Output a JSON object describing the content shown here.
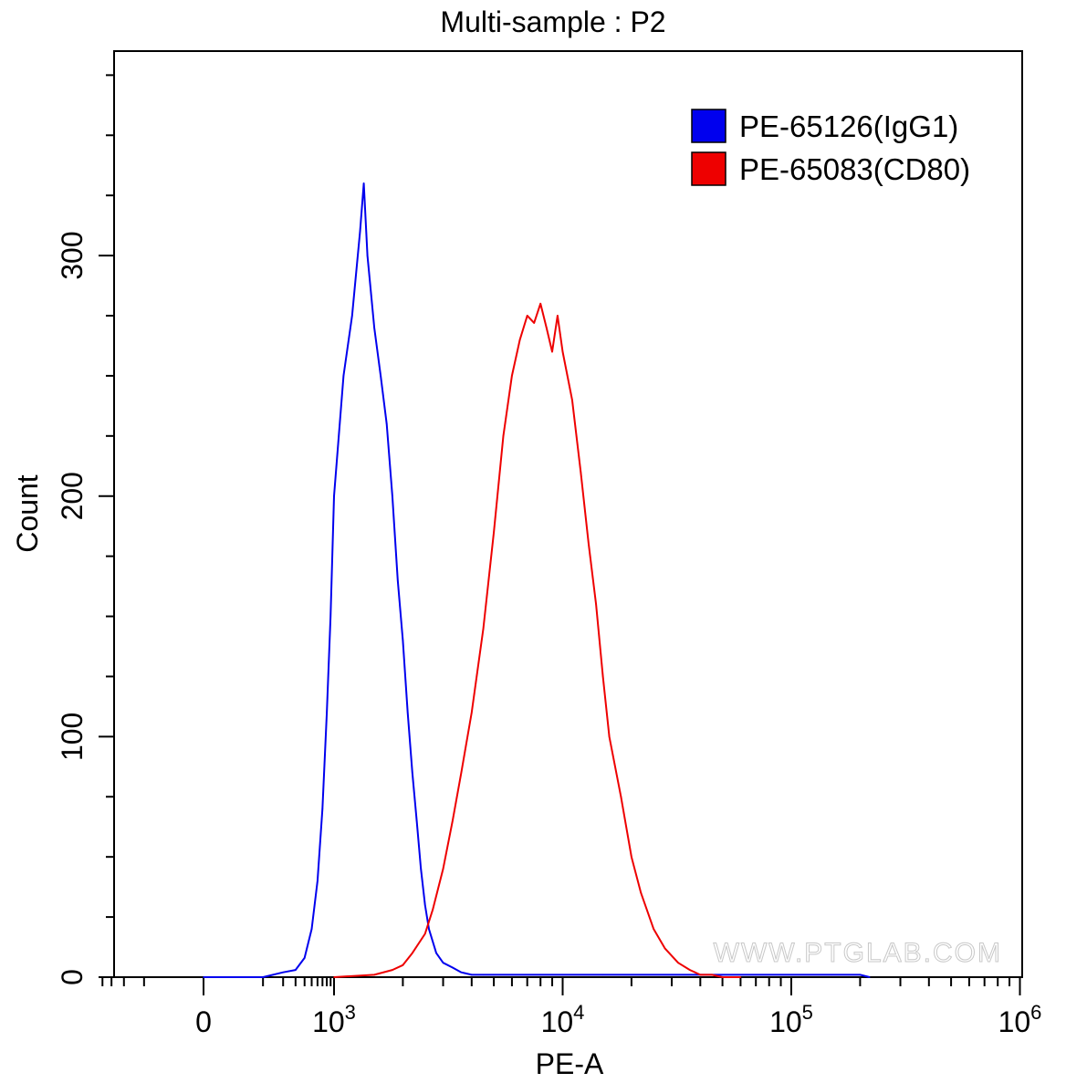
{
  "chart_data": {
    "type": "line",
    "title": "Multi-sample : P2",
    "xlabel": "PE-A",
    "ylabel": "Count",
    "x_scale": "biexponential",
    "xlim": [
      -400,
      1000000
    ],
    "ylim": [
      0,
      385
    ],
    "x_ticks": [
      {
        "value": 0,
        "base": "0",
        "exp": ""
      },
      {
        "value": 1000,
        "base": "10",
        "exp": "3"
      },
      {
        "value": 10000,
        "base": "10",
        "exp": "4"
      },
      {
        "value": 100000,
        "base": "10",
        "exp": "5"
      },
      {
        "value": 1000000,
        "base": "10",
        "exp": "6"
      }
    ],
    "y_ticks": [
      0,
      100,
      200,
      300
    ],
    "legend_position": "top-right",
    "watermark": "WWW.PTGLAB.COM",
    "series": [
      {
        "name": "PE-65126(IgG1)",
        "color": "#0000ee",
        "x": [
          0,
          100,
          200,
          300,
          400,
          500,
          600,
          700,
          800,
          900,
          1000,
          1100,
          1200,
          1300,
          1350,
          1400,
          1500,
          1600,
          1700,
          1800,
          1900,
          2000,
          2100,
          2200,
          2300,
          2400,
          2500,
          2600,
          2800,
          3000,
          3300,
          3600,
          4000,
          4500,
          5000,
          6000,
          8000,
          10000,
          15000,
          20000,
          30000,
          50000,
          70000,
          100000,
          150000,
          200000,
          220000
        ],
        "y": [
          0,
          0,
          2,
          3,
          8,
          20,
          40,
          70,
          110,
          150,
          200,
          250,
          275,
          310,
          330,
          300,
          270,
          250,
          230,
          200,
          165,
          140,
          110,
          85,
          65,
          45,
          30,
          20,
          10,
          6,
          4,
          2,
          1,
          1,
          1,
          1,
          1,
          1,
          1,
          1,
          1,
          1,
          1,
          1,
          1,
          1,
          0
        ]
      },
      {
        "name": "PE-65083(CD80)",
        "color": "#ee0000",
        "x": [
          1000,
          1500,
          1800,
          2000,
          2200,
          2500,
          2700,
          3000,
          3300,
          3600,
          4000,
          4500,
          5000,
          5500,
          6000,
          6500,
          7000,
          7500,
          8000,
          8500,
          9000,
          9500,
          10000,
          11000,
          12000,
          13000,
          14000,
          15000,
          16000,
          18000,
          20000,
          22000,
          25000,
          28000,
          32000,
          36000,
          40000,
          45000,
          50000,
          60000
        ],
        "y": [
          0,
          1,
          3,
          5,
          10,
          18,
          28,
          45,
          65,
          85,
          110,
          145,
          185,
          225,
          250,
          265,
          275,
          272,
          280,
          270,
          260,
          275,
          260,
          240,
          210,
          180,
          155,
          125,
          100,
          75,
          50,
          35,
          20,
          12,
          6,
          3,
          1,
          1,
          0,
          0
        ]
      }
    ]
  }
}
